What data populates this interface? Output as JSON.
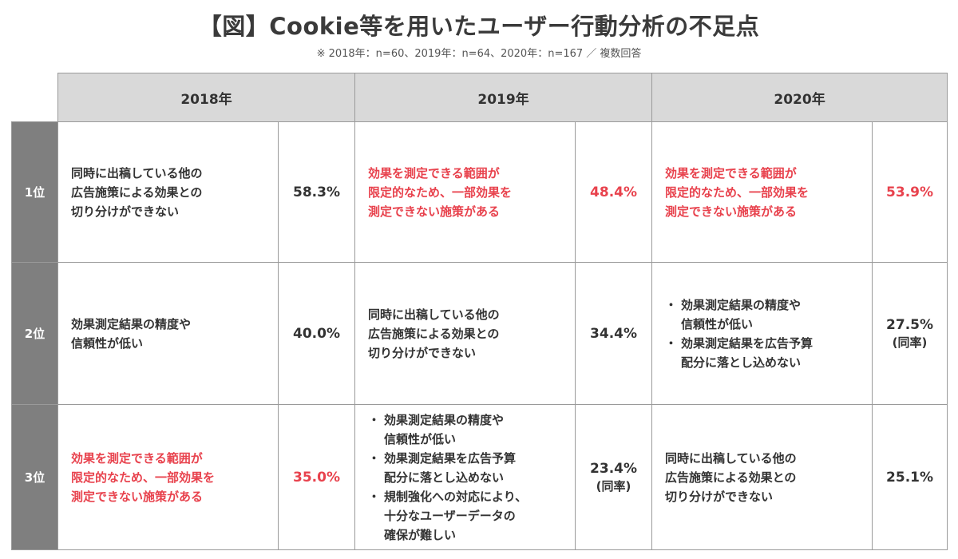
{
  "title": "【図】Cookie等を用いたユーザー行動分析の不足点",
  "subtitle": "※ 2018年：n=60、2019年：n=64、2020年：n=167 ／ 複数回答",
  "years": [
    "2018年",
    "2019年",
    "2020年"
  ],
  "rows": [
    {
      "rank": "1位",
      "cells": [
        {
          "lines": [
            "同時に出稿している他の",
            "広告施策による効果との",
            "切り分けができない"
          ],
          "pct": "58.3%",
          "pct_sub": "",
          "highlight": false
        },
        {
          "lines": [
            "効果を測定できる範囲が",
            "限定的なため、一部効果を",
            "測定できない施策がある"
          ],
          "pct": "48.4%",
          "pct_sub": "",
          "highlight": true
        },
        {
          "lines": [
            "効果を測定できる範囲が",
            "限定的なため、一部効果を",
            "測定できない施策がある"
          ],
          "pct": "53.9%",
          "pct_sub": "",
          "highlight": true
        }
      ]
    },
    {
      "rank": "2位",
      "cells": [
        {
          "lines": [
            "効果測定結果の精度や",
            "信頼性が低い"
          ],
          "pct": "40.0%",
          "pct_sub": "",
          "highlight": false
        },
        {
          "lines": [
            "同時に出稿している他の",
            "広告施策による効果との",
            "切り分けができない"
          ],
          "pct": "34.4%",
          "pct_sub": "",
          "highlight": false
        },
        {
          "bullets": [
            [
              "効果測定結果の精度や",
              "信頼性が低い"
            ],
            [
              "効果測定結果を広告予算",
              "配分に落とし込めない"
            ]
          ],
          "pct": "27.5%",
          "pct_sub": "(同率)",
          "highlight": false
        }
      ]
    },
    {
      "rank": "3位",
      "cells": [
        {
          "lines": [
            "効果を測定できる範囲が",
            "限定的なため、一部効果を",
            "測定できない施策がある"
          ],
          "pct": "35.0%",
          "pct_sub": "",
          "highlight": true
        },
        {
          "bullets": [
            [
              "効果測定結果の精度や",
              "信頼性が低い"
            ],
            [
              "効果測定結果を広告予算",
              "配分に落とし込めない"
            ],
            [
              "規制強化への対応により、",
              "十分なユーザーデータの",
              "確保が難しい"
            ]
          ],
          "pct": "23.4%",
          "pct_sub": "(同率)",
          "highlight": false
        },
        {
          "lines": [
            "同時に出稿している他の",
            "広告施策による効果との",
            "切り分けができない"
          ],
          "pct": "25.1%",
          "pct_sub": "",
          "highlight": false
        }
      ]
    }
  ]
}
